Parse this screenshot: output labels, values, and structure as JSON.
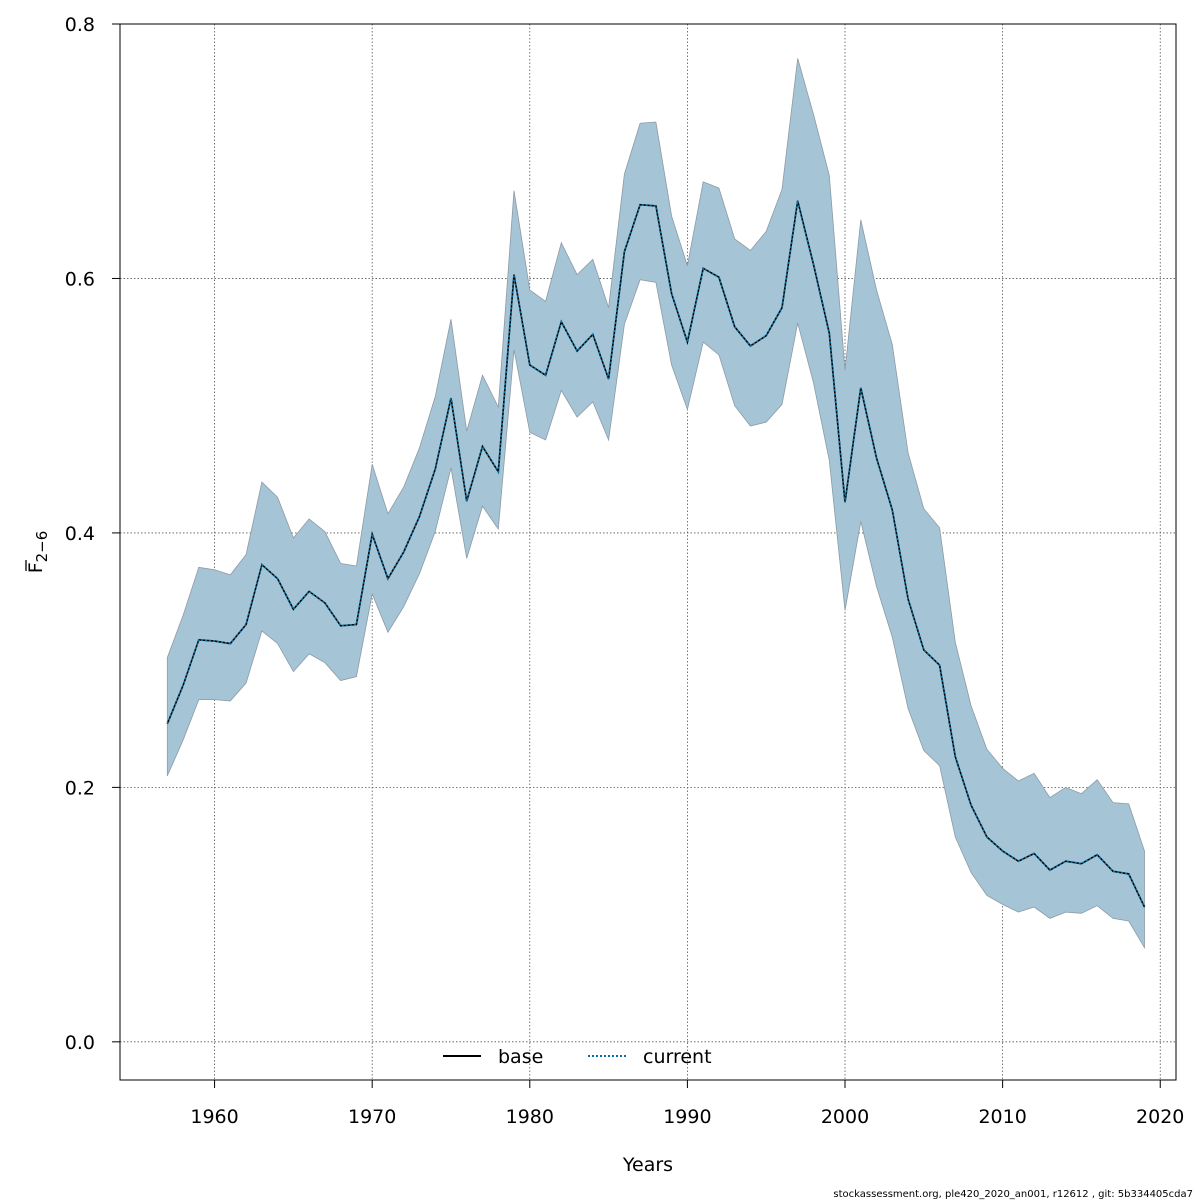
{
  "chart_data": {
    "type": "line",
    "title": "",
    "xlabel": "Years",
    "ylabel_main": "F",
    "ylabel_sub": "2−6",
    "xlim": [
      1954,
      2021
    ],
    "ylim": [
      -0.03,
      0.8
    ],
    "xticks": [
      1960,
      1970,
      1980,
      1990,
      2000,
      2010,
      2020
    ],
    "yticks": [
      0.0,
      0.2,
      0.4,
      0.6,
      0.8
    ],
    "xtick_labels": [
      "1960",
      "1970",
      "1980",
      "1990",
      "2000",
      "2010",
      "2020"
    ],
    "ytick_labels": [
      "0.0",
      "0.2",
      "0.4",
      "0.6",
      "0.8"
    ],
    "grid": true,
    "legend_placement": "bottom",
    "colors": {
      "band": "#a5c4d5",
      "band_edge": "#8c9ba6",
      "base": "#000000",
      "current": "#0a6fa0"
    },
    "x": [
      1957,
      1958,
      1959,
      1960,
      1961,
      1962,
      1963,
      1964,
      1965,
      1966,
      1967,
      1968,
      1969,
      1970,
      1971,
      1972,
      1973,
      1974,
      1975,
      1976,
      1977,
      1978,
      1979,
      1980,
      1981,
      1982,
      1983,
      1984,
      1985,
      1986,
      1987,
      1988,
      1989,
      1990,
      1991,
      1992,
      1993,
      1994,
      1995,
      1996,
      1997,
      1998,
      1999,
      2000,
      2001,
      2002,
      2003,
      2004,
      2005,
      2006,
      2007,
      2008,
      2009,
      2010,
      2011,
      2012,
      2013,
      2014,
      2015,
      2016,
      2017,
      2018,
      2019
    ],
    "band": {
      "upper": [
        0.302,
        0.335,
        0.373,
        0.371,
        0.367,
        0.383,
        0.44,
        0.428,
        0.396,
        0.411,
        0.401,
        0.376,
        0.374,
        0.454,
        0.415,
        0.436,
        0.467,
        0.507,
        0.568,
        0.48,
        0.524,
        0.499,
        0.669,
        0.591,
        0.582,
        0.628,
        0.603,
        0.615,
        0.577,
        0.682,
        0.722,
        0.723,
        0.649,
        0.61,
        0.676,
        0.671,
        0.631,
        0.622,
        0.637,
        0.67,
        0.773,
        0.729,
        0.681,
        0.528,
        0.646,
        0.591,
        0.548,
        0.463,
        0.419,
        0.404,
        0.314,
        0.264,
        0.23,
        0.215,
        0.205,
        0.211,
        0.192,
        0.2,
        0.195,
        0.206,
        0.188,
        0.187,
        0.15
      ],
      "lower": [
        0.209,
        0.237,
        0.269,
        0.269,
        0.268,
        0.282,
        0.323,
        0.313,
        0.291,
        0.305,
        0.298,
        0.284,
        0.287,
        0.352,
        0.322,
        0.342,
        0.368,
        0.401,
        0.451,
        0.38,
        0.421,
        0.403,
        0.544,
        0.479,
        0.473,
        0.512,
        0.491,
        0.503,
        0.473,
        0.564,
        0.599,
        0.597,
        0.532,
        0.497,
        0.55,
        0.54,
        0.5,
        0.484,
        0.487,
        0.501,
        0.565,
        0.518,
        0.457,
        0.339,
        0.409,
        0.358,
        0.318,
        0.262,
        0.229,
        0.217,
        0.161,
        0.133,
        0.115,
        0.108,
        0.102,
        0.106,
        0.097,
        0.102,
        0.101,
        0.107,
        0.097,
        0.095,
        0.074
      ]
    },
    "series": [
      {
        "name": "base",
        "values": [
          0.25,
          0.28,
          0.316,
          0.315,
          0.313,
          0.328,
          0.375,
          0.364,
          0.34,
          0.354,
          0.345,
          0.327,
          0.328,
          0.399,
          0.364,
          0.385,
          0.413,
          0.45,
          0.506,
          0.425,
          0.468,
          0.448,
          0.603,
          0.532,
          0.524,
          0.566,
          0.543,
          0.556,
          0.521,
          0.621,
          0.658,
          0.657,
          0.588,
          0.55,
          0.608,
          0.601,
          0.562,
          0.547,
          0.555,
          0.577,
          0.661,
          0.611,
          0.557,
          0.424,
          0.514,
          0.459,
          0.418,
          0.348,
          0.308,
          0.296,
          0.224,
          0.186,
          0.161,
          0.15,
          0.142,
          0.148,
          0.135,
          0.142,
          0.14,
          0.147,
          0.134,
          0.132,
          0.106
        ]
      },
      {
        "name": "current",
        "values": [
          0.25,
          0.28,
          0.316,
          0.315,
          0.313,
          0.328,
          0.375,
          0.364,
          0.34,
          0.354,
          0.345,
          0.327,
          0.328,
          0.399,
          0.364,
          0.385,
          0.413,
          0.45,
          0.506,
          0.425,
          0.468,
          0.448,
          0.603,
          0.532,
          0.524,
          0.566,
          0.543,
          0.556,
          0.521,
          0.621,
          0.658,
          0.657,
          0.588,
          0.55,
          0.608,
          0.601,
          0.562,
          0.547,
          0.555,
          0.577,
          0.661,
          0.611,
          0.557,
          0.424,
          0.514,
          0.459,
          0.418,
          0.348,
          0.308,
          0.296,
          0.224,
          0.186,
          0.161,
          0.15,
          0.142,
          0.148,
          0.135,
          0.142,
          0.14,
          0.147,
          0.134,
          0.132,
          0.106
        ]
      }
    ]
  },
  "footer": {
    "credit": "stockassessment.org, ple420_2020_an001, r12612 , git: 5b334405cda7"
  }
}
